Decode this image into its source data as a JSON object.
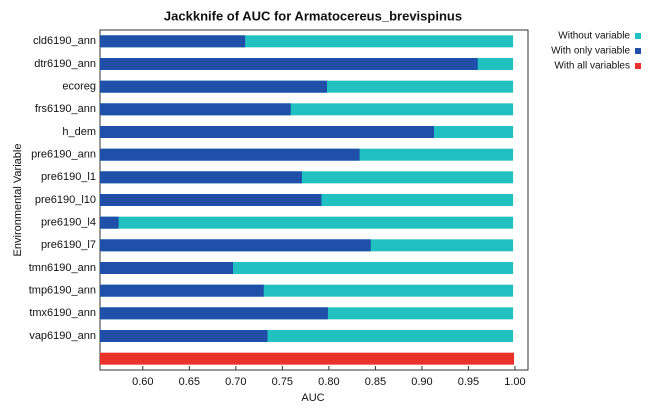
{
  "chart_data": {
    "type": "bar",
    "orientation": "horizontal",
    "title": "Jackknife of AUC for Armatocereus_brevispinus",
    "x_label": "AUC",
    "y_label": "Environmental Variable",
    "categories": [
      "cld6190_ann",
      "dtr6190_ann",
      "ecoreg",
      "frs6190_ann",
      "h_dem",
      "pre6190_ann",
      "pre6190_l1",
      "pre6190_l10",
      "pre6190_l4",
      "pre6190_l7",
      "tmn6190_ann",
      "tmp6190_ann",
      "tmx6190_ann",
      "vap6190_ann",
      null
    ],
    "series": [
      {
        "name": "Without variable",
        "color": "#22c1c1",
        "values": [
          0.998,
          0.998,
          0.998,
          0.998,
          0.998,
          0.998,
          0.998,
          0.998,
          0.998,
          0.998,
          0.998,
          0.998,
          0.998,
          0.998,
          null
        ]
      },
      {
        "name": "With only variable",
        "color": "#1f4fa8",
        "values": [
          0.71,
          0.96,
          0.798,
          0.759,
          0.913,
          0.833,
          0.771,
          0.792,
          0.574,
          0.845,
          0.697,
          0.73,
          0.799,
          0.734,
          null
        ]
      },
      {
        "name": "With all variables",
        "color": "#e8322a",
        "values": [
          null,
          null,
          null,
          null,
          null,
          null,
          null,
          null,
          null,
          null,
          null,
          null,
          null,
          null,
          0.999
        ]
      }
    ],
    "xlim": [
      0.554,
      1.014
    ],
    "xticks": [
      {
        "value": 0.6,
        "label": "0.60"
      },
      0.65,
      {
        "value": 0.7,
        "label": "0.70"
      },
      0.75,
      {
        "value": 0.8,
        "label": "0.80"
      },
      0.85,
      {
        "value": 0.9,
        "label": "0.90"
      },
      0.95,
      {
        "value": 1.0,
        "label": "1.00"
      }
    ],
    "legend_position": "outside right"
  }
}
